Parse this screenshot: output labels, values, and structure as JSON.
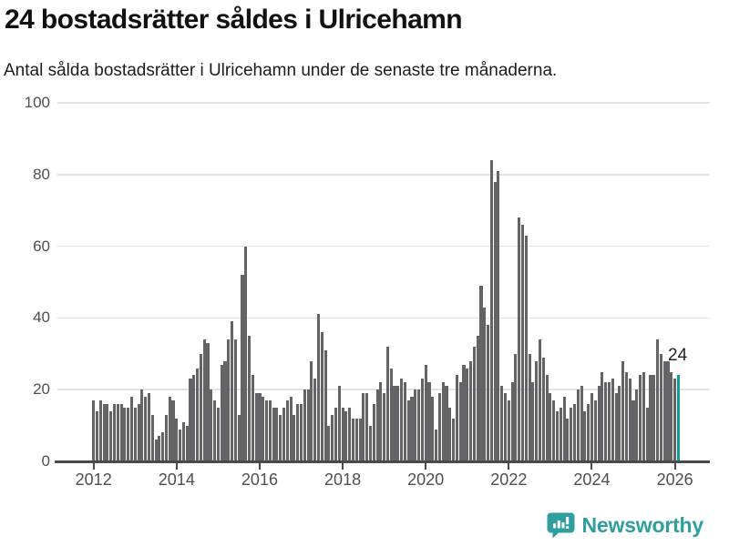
{
  "header": {
    "title": "24 bostadsrätter såldes i Ulricehamn",
    "subtitle": "Antal sålda bostadsrätter i Ulricehamn under de senaste tre månaderna."
  },
  "chart_data": {
    "type": "bar",
    "title": "24 bostadsrätter såldes i Ulricehamn",
    "xlabel": "",
    "ylabel": "",
    "x_start": "2012-01",
    "frequency": "monthly",
    "ylim": [
      0,
      100
    ],
    "yticks": [
      0,
      20,
      40,
      60,
      80,
      100
    ],
    "xticks": [
      2012,
      2014,
      2016,
      2018,
      2020,
      2022,
      2024,
      2026
    ],
    "grid": true,
    "bar_color": "#646467",
    "highlight_last": true,
    "highlight_color": "#119b9b",
    "last_value_label": "24",
    "values": [
      17,
      14,
      17,
      16,
      16,
      14,
      16,
      16,
      16,
      15,
      15,
      18,
      15,
      16,
      20,
      18,
      19,
      13,
      6,
      7,
      8,
      13,
      18,
      17,
      12,
      9,
      11,
      10,
      23,
      24,
      26,
      30,
      34,
      33,
      20,
      17,
      15,
      27,
      28,
      34,
      39,
      34,
      13,
      52,
      60,
      35,
      24,
      19,
      19,
      18,
      17,
      17,
      15,
      15,
      13,
      15,
      17,
      18,
      13,
      16,
      16,
      20,
      20,
      28,
      23,
      41,
      36,
      31,
      10,
      13,
      15,
      21,
      15,
      14,
      15,
      12,
      12,
      12,
      19,
      19,
      10,
      16,
      20,
      22,
      19,
      32,
      26,
      21,
      21,
      23,
      22,
      17,
      18,
      20,
      20,
      23,
      27,
      22,
      18,
      9,
      19,
      22,
      21,
      15,
      12,
      24,
      22,
      27,
      26,
      28,
      32,
      35,
      49,
      43,
      38,
      84,
      78,
      81,
      21,
      19,
      17,
      22,
      30,
      68,
      66,
      63,
      30,
      22,
      28,
      34,
      29,
      24,
      19,
      17,
      14,
      15,
      18,
      12,
      15,
      16,
      20,
      21,
      14,
      16,
      19,
      17,
      21,
      25,
      22,
      22,
      23,
      19,
      21,
      28,
      25,
      23,
      17,
      20,
      24,
      25,
      15,
      24,
      24,
      34,
      30,
      28,
      28,
      25,
      23,
      24
    ]
  },
  "annotation": {
    "last_value": "24"
  },
  "footer": {
    "brand": "Newsworthy",
    "brand_color": "#2e9e9e"
  }
}
